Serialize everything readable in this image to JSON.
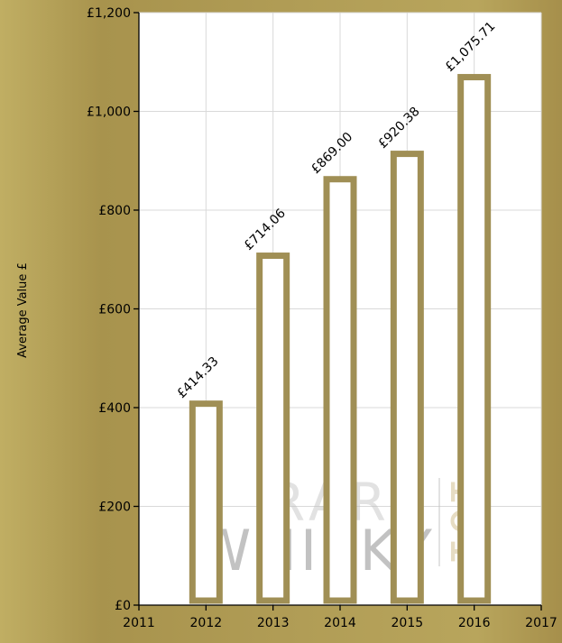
{
  "chart_data": {
    "type": "bar",
    "categories": [
      "2012",
      "2013",
      "2014",
      "2015",
      "2016"
    ],
    "values": [
      414.33,
      714.06,
      869.0,
      920.38,
      1075.71
    ],
    "data_labels": [
      "£414.33",
      "£714.06",
      "£869.00",
      "£920.38",
      "£1,075.71"
    ],
    "title": "",
    "xlabel": "",
    "ylabel": "Average Value £",
    "xlim": [
      2011,
      2017
    ],
    "ylim": [
      0,
      1200
    ],
    "x_ticks": [
      2011,
      2012,
      2013,
      2014,
      2015,
      2016,
      2017
    ],
    "x_tick_labels": [
      "2011",
      "2012",
      "2013",
      "2014",
      "2015",
      "2016",
      "2017"
    ],
    "y_ticks": [
      0,
      200,
      400,
      600,
      800,
      1000,
      1200
    ],
    "y_tick_labels": [
      "£0",
      "£200",
      "£400",
      "£600",
      "£800",
      "£1,000",
      "£1,200"
    ],
    "grid": true,
    "legend": "none",
    "colors": {
      "bar_stroke": "#a08f55",
      "bar_fill": "#ffffff",
      "gridline": "#d9d9d9",
      "axis": "#000000",
      "plot_background": "#ffffff"
    }
  },
  "watermark": {
    "line1": "RARE",
    "line2": "WHISKY",
    "line3": "101"
  }
}
